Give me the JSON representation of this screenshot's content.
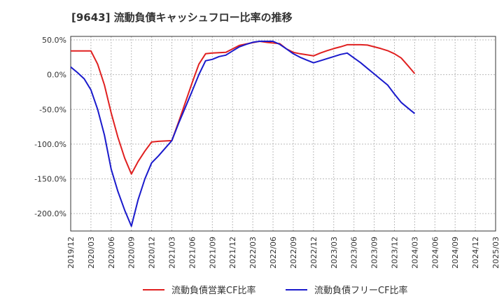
{
  "chart_data": {
    "type": "line",
    "title": "[9643]  流動負債キャッシュフロー比率の推移",
    "xlabel": "",
    "ylabel": "",
    "ylim": [
      -225,
      55
    ],
    "yticks": [
      50,
      0,
      -50,
      -100,
      -150,
      -200
    ],
    "ytick_labels": [
      "50.0%",
      "0.0%",
      "-50.0%",
      "-100.0%",
      "-150.0%",
      "-200.0%"
    ],
    "x_start": "2019/12",
    "x_end": "2025/03",
    "xtick_labels": [
      "2019/12",
      "2020/03",
      "2020/06",
      "2020/09",
      "2020/12",
      "2021/03",
      "2021/06",
      "2021/09",
      "2021/12",
      "2022/03",
      "2022/06",
      "2022/09",
      "2022/12",
      "2023/03",
      "2023/06",
      "2023/09",
      "2023/12",
      "2024/03",
      "2024/06",
      "2024/09",
      "2024/12",
      "2025/03"
    ],
    "grid": true,
    "legend_position": "bottom",
    "series": [
      {
        "name": "流動負債営業CF比率",
        "color": "#e02020",
        "x": [
          0,
          1,
          2,
          3,
          4,
          5,
          6,
          7,
          8,
          9,
          10,
          11,
          12,
          13,
          14,
          15,
          16,
          17,
          18,
          19,
          20,
          21,
          22,
          23,
          24,
          25,
          26,
          27,
          28,
          29,
          30,
          31,
          32,
          33,
          34,
          35,
          36,
          37,
          38,
          39,
          40,
          41,
          42,
          43,
          44,
          45,
          46,
          47,
          48,
          49,
          50,
          51,
          52,
          53,
          54,
          55,
          56,
          57
        ],
        "values": [
          34,
          34,
          34,
          34,
          15,
          -15,
          -55,
          -90,
          -120,
          -143,
          -125,
          -110,
          -97,
          -96,
          -95.5,
          -95,
          -68,
          -40,
          -12,
          15,
          30,
          31,
          31.5,
          32,
          37,
          42,
          44,
          46,
          48,
          46.5,
          45.5,
          44.5,
          37,
          32,
          30,
          28.5,
          27,
          31,
          34.5,
          37.5,
          40,
          43,
          43,
          43,
          42.5,
          40,
          37.5,
          34.5,
          30,
          24,
          13,
          1.5,
          null,
          null,
          null,
          null,
          null,
          null
        ]
      },
      {
        "name": "流動負債フリーCF比率",
        "color": "#1a1acc",
        "x": [
          0,
          1,
          2,
          3,
          4,
          5,
          6,
          7,
          8,
          9,
          10,
          11,
          12,
          13,
          14,
          15,
          16,
          17,
          18,
          19,
          20,
          21,
          22,
          23,
          24,
          25,
          26,
          27,
          28,
          29,
          30,
          31,
          32,
          33,
          34,
          35,
          36,
          37,
          38,
          39,
          40,
          41,
          42,
          43,
          44,
          45,
          46,
          47,
          48,
          49,
          50,
          51,
          52,
          53,
          54,
          55,
          56,
          57
        ],
        "values": [
          11,
          3,
          -6,
          -22,
          -50,
          -87,
          -136,
          -168,
          -195,
          -218,
          -180,
          -150,
          -127,
          -117,
          -106,
          -95,
          -70,
          -47,
          -24,
          0,
          20,
          22,
          26,
          28,
          34,
          40,
          43.5,
          46.5,
          48,
          48,
          48,
          43.5,
          37,
          30,
          25,
          21,
          17,
          20,
          23,
          26,
          29,
          31,
          24,
          17,
          9,
          1,
          -7,
          -15,
          -28,
          -40,
          -48,
          -56,
          null,
          null,
          null,
          null,
          null,
          null
        ]
      }
    ]
  }
}
